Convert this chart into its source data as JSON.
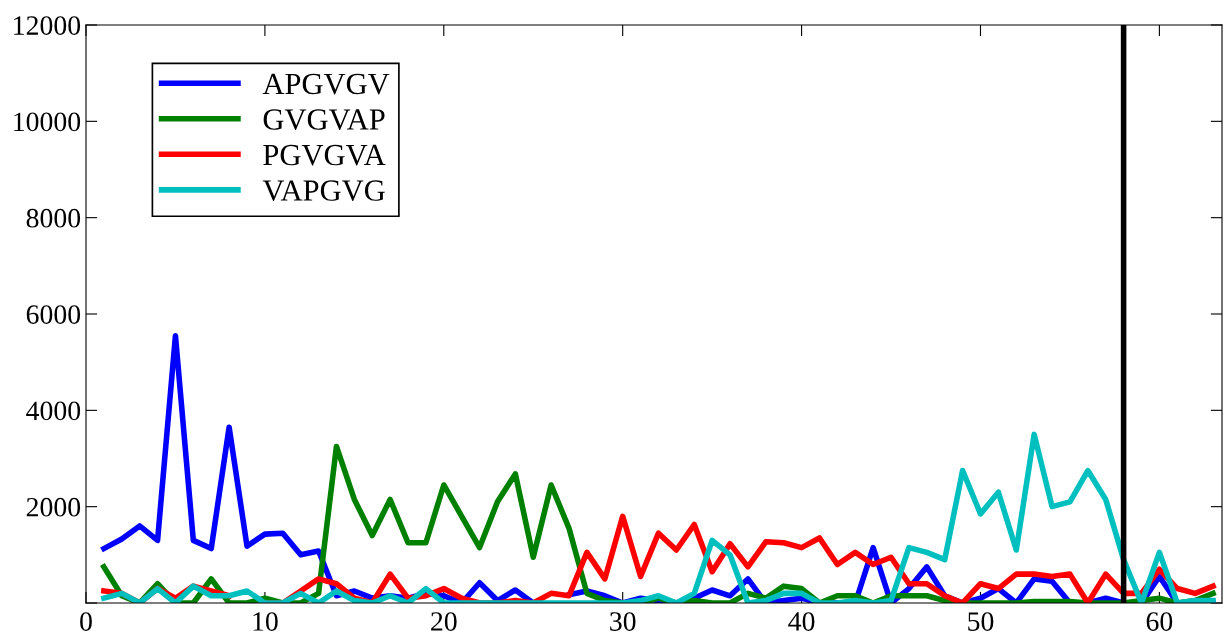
{
  "chart_data": {
    "type": "line",
    "x": [
      1,
      2,
      3,
      4,
      5,
      6,
      7,
      8,
      9,
      10,
      11,
      12,
      13,
      14,
      15,
      16,
      17,
      18,
      19,
      20,
      21,
      22,
      23,
      24,
      25,
      26,
      27,
      28,
      29,
      30,
      31,
      32,
      33,
      34,
      35,
      36,
      37,
      38,
      39,
      40,
      41,
      42,
      43,
      44,
      45,
      46,
      47,
      48,
      49,
      50,
      51,
      52,
      53,
      54,
      55,
      56,
      57,
      58,
      59,
      60,
      61,
      62,
      63
    ],
    "series": [
      {
        "name": "APGVGV",
        "color": "#0000ff",
        "values": [
          1130,
          1330,
          1600,
          1300,
          5550,
          1300,
          1130,
          3650,
          1180,
          1430,
          1450,
          1000,
          1080,
          150,
          250,
          100,
          150,
          100,
          200,
          150,
          0,
          420,
          50,
          270,
          0,
          null,
          170,
          250,
          150,
          0,
          100,
          50,
          0,
          100,
          270,
          150,
          500,
          0,
          50,
          100,
          0,
          0,
          0,
          1150,
          0,
          300,
          750,
          150,
          0,
          100,
          300,
          0,
          500,
          450,
          0,
          0,
          100,
          0,
          0,
          550,
          0,
          0,
          0
        ]
      },
      {
        "name": "GVGVAP",
        "color": "#008000",
        "values": [
          750,
          150,
          0,
          400,
          0,
          0,
          500,
          0,
          0,
          100,
          0,
          0,
          200,
          3250,
          2150,
          1400,
          2150,
          1250,
          1250,
          2450,
          1800,
          1150,
          2100,
          2680,
          950,
          2450,
          1550,
          200,
          50,
          0,
          0,
          100,
          0,
          50,
          0,
          0,
          200,
          100,
          350,
          300,
          0,
          150,
          150,
          0,
          150,
          150,
          150,
          50,
          0,
          0,
          0,
          0,
          30,
          30,
          30,
          0,
          0,
          0,
          50,
          100,
          0,
          50,
          200
        ]
      },
      {
        "name": "PGVGVA",
        "color": "#ff0000",
        "values": [
          250,
          200,
          0,
          300,
          100,
          350,
          250,
          150,
          null,
          0,
          0,
          250,
          500,
          400,
          100,
          0,
          600,
          100,
          150,
          300,
          100,
          0,
          0,
          50,
          0,
          200,
          150,
          1050,
          500,
          1800,
          550,
          1450,
          1100,
          1630,
          650,
          1230,
          750,
          1270,
          1250,
          1150,
          1350,
          800,
          1050,
          800,
          950,
          400,
          400,
          150,
          0,
          400,
          300,
          600,
          600,
          550,
          600,
          0,
          600,
          200,
          200,
          700,
          300,
          200,
          350
        ]
      },
      {
        "name": "VAPGVG",
        "color": "#00bfbf",
        "values": [
          100,
          200,
          0,
          300,
          0,
          350,
          150,
          150,
          250,
          0,
          0,
          200,
          0,
          250,
          50,
          0,
          150,
          0,
          300,
          0,
          0,
          0,
          0,
          0,
          0,
          0,
          0,
          0,
          0,
          0,
          50,
          150,
          0,
          200,
          1300,
          1000,
          0,
          50,
          200,
          200,
          0,
          0,
          50,
          0,
          50,
          1150,
          1050,
          900,
          2750,
          1850,
          2300,
          1100,
          3500,
          2000,
          2100,
          2750,
          2150,
          900,
          0,
          1050,
          0,
          50,
          50
        ]
      }
    ],
    "xlim": [
      0,
      63.5
    ],
    "xticks": [
      0,
      10,
      20,
      30,
      40,
      50,
      60
    ],
    "ylim": [
      0,
      12000
    ],
    "yticks": [
      {
        "value": 0,
        "label": null
      },
      2000,
      4000,
      6000,
      8000,
      10000,
      12000
    ],
    "ref_lines": [
      {
        "axis": "x",
        "value": 58,
        "color": "#000000"
      }
    ],
    "legend": "top left",
    "grid": false,
    "marker": "none",
    "line_style": "solid"
  }
}
